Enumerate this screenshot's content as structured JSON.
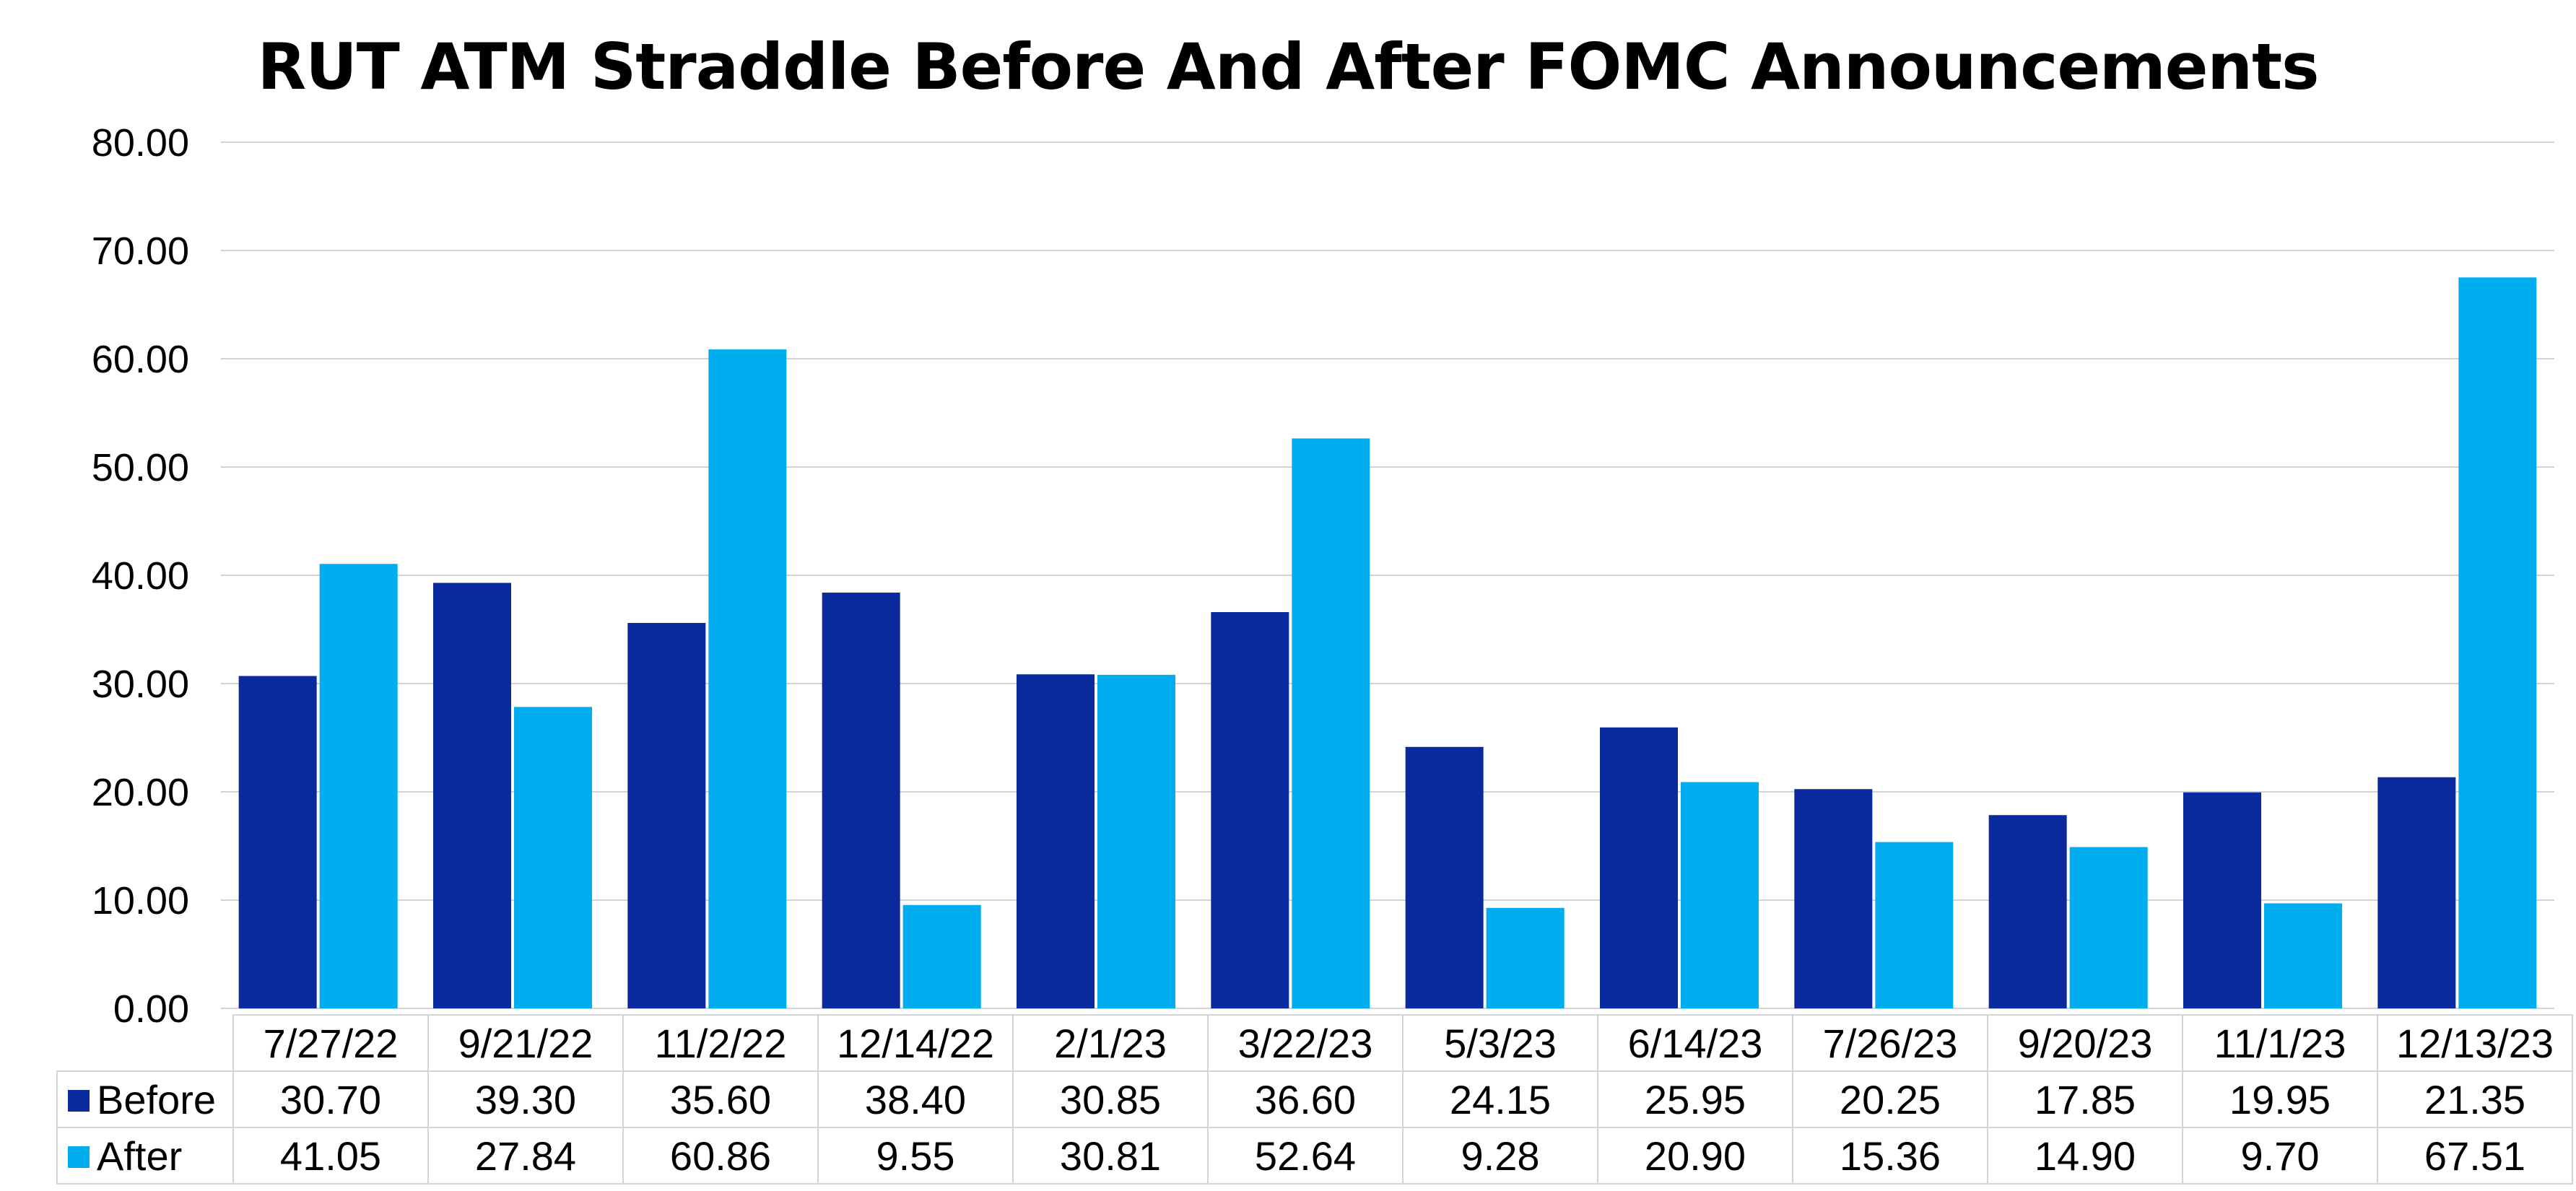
{
  "chart_data": {
    "type": "bar",
    "title": "RUT ATM Straddle Before And After FOMC Announcements",
    "categories": [
      "7/27/22",
      "9/21/22",
      "11/2/22",
      "12/14/22",
      "2/1/23",
      "3/22/23",
      "5/3/23",
      "6/14/23",
      "7/26/23",
      "9/20/23",
      "11/1/23",
      "12/13/23"
    ],
    "series": [
      {
        "name": "Before",
        "color": "#0a2ba0",
        "values": [
          30.7,
          39.3,
          35.6,
          38.4,
          30.85,
          36.6,
          24.15,
          25.95,
          20.25,
          17.85,
          19.95,
          21.35
        ],
        "labels": [
          "30.70",
          "39.30",
          "35.60",
          "38.40",
          "30.85",
          "36.60",
          "24.15",
          "25.95",
          "20.25",
          "17.85",
          "19.95",
          "21.35"
        ]
      },
      {
        "name": "After",
        "color": "#00aeef",
        "values": [
          41.05,
          27.84,
          60.86,
          9.55,
          30.81,
          52.64,
          9.28,
          20.9,
          15.36,
          14.9,
          9.7,
          67.51
        ],
        "labels": [
          "41.05",
          "27.84",
          "60.86",
          "9.55",
          "30.81",
          "52.64",
          "9.28",
          "20.90",
          "15.36",
          "14.90",
          "9.70",
          "67.51"
        ]
      }
    ],
    "ylim": [
      0,
      80
    ],
    "yticks": [
      "0.00",
      "10.00",
      "20.00",
      "30.00",
      "40.00",
      "50.00",
      "60.00",
      "70.00",
      "80.00"
    ],
    "grid": true,
    "legend": "data table below chart"
  }
}
